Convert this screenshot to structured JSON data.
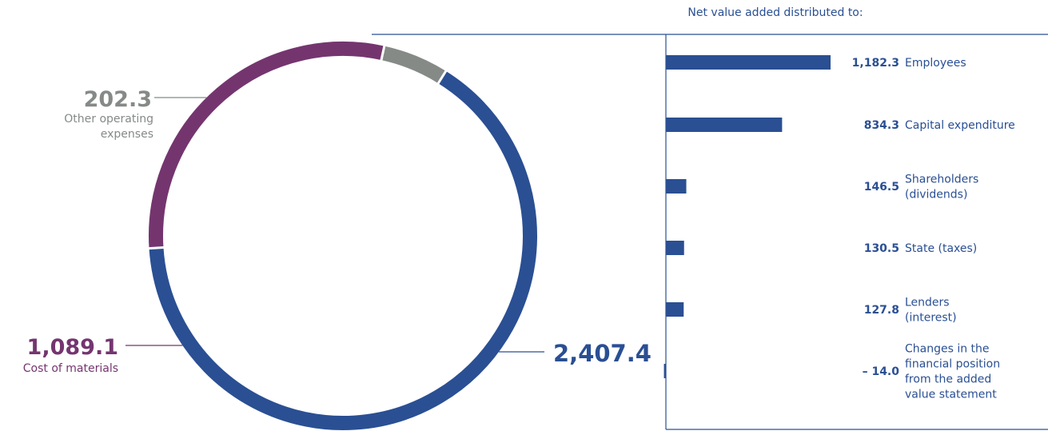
{
  "chart_data": [
    {
      "type": "donut",
      "slices": [
        {
          "value": 2407.4,
          "label": "",
          "color": "#2a4f93"
        },
        {
          "value": 1089.1,
          "label": "Cost of materials",
          "color": "#74356f"
        },
        {
          "value": 202.3,
          "label": "Other operating expenses",
          "label_lines": [
            "Other operating",
            "expenses"
          ],
          "color": "#858a87"
        }
      ],
      "value_labels": [
        "2,407.4",
        "1,089.1",
        "202.3"
      ]
    },
    {
      "type": "bar",
      "orientation": "horizontal",
      "title": "Net value added distributed to:",
      "bar_color": "#2a4f93",
      "bars": [
        {
          "value": 1182.3,
          "value_label": "1,182.3",
          "lines": [
            "Employees"
          ]
        },
        {
          "value": 834.3,
          "value_label": "834.3",
          "lines": [
            "Capital expenditure"
          ]
        },
        {
          "value": 146.5,
          "value_label": "146.5",
          "lines": [
            "Shareholders",
            "(dividends)"
          ]
        },
        {
          "value": 130.5,
          "value_label": "130.5",
          "lines": [
            "State (taxes)"
          ]
        },
        {
          "value": 127.8,
          "value_label": "127.8",
          "lines": [
            "Lenders",
            "(interest)"
          ]
        },
        {
          "value": -14.0,
          "value_label": "– 14.0",
          "lines": [
            "Changes in the",
            "financial position",
            "from the added",
            "value statement"
          ]
        }
      ]
    }
  ]
}
